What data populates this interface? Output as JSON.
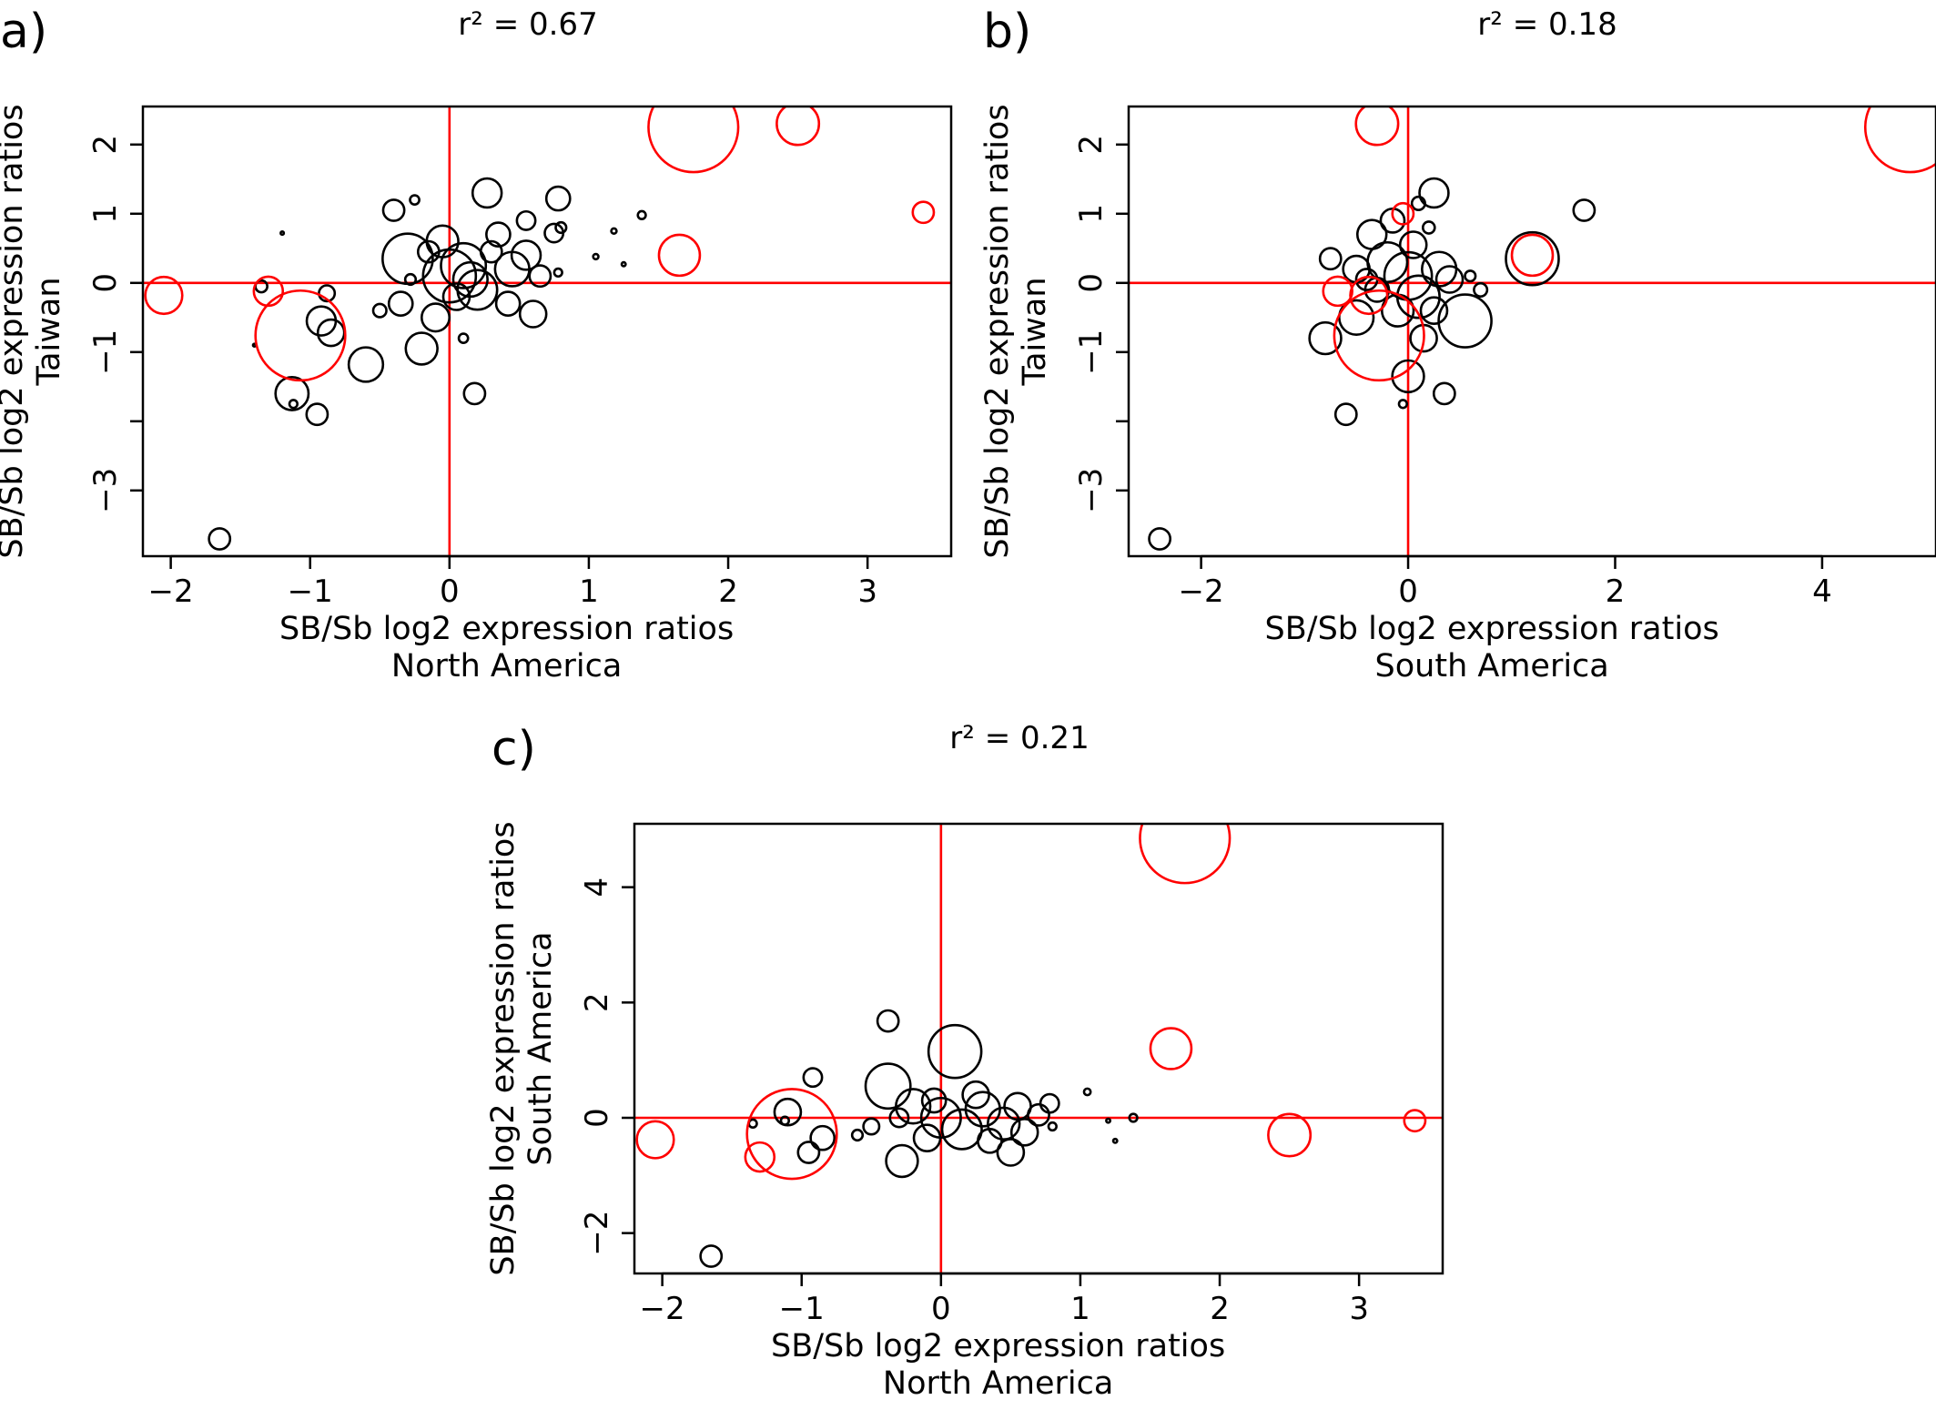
{
  "figure": {
    "colors": {
      "normal": "#000000",
      "highlight": "#ff0000",
      "reference_line": "#ff0000"
    }
  },
  "chart_data": [
    {
      "id": "a",
      "type": "scatter",
      "panel_label": "a)",
      "annotation": "r² = 0.67",
      "xlabel": [
        "SB/Sb log2 expression ratios",
        "North America"
      ],
      "ylabel": [
        "SB/Sb log2 expression ratios",
        "Taiwan"
      ],
      "xlim": [
        -2.2,
        3.6
      ],
      "ylim": [
        -3.95,
        2.55
      ],
      "xticks": [
        -2,
        -1,
        0,
        1,
        2,
        3
      ],
      "xtick_labels": [
        "−2",
        "−1",
        "0",
        "1",
        "2",
        "3"
      ],
      "yticks": [
        2,
        1,
        0,
        -1,
        -2,
        -3
      ],
      "ytick_labels": [
        "2",
        "1",
        "0",
        "−1",
        "",
        "−3"
      ],
      "reference_lines": {
        "x": 0,
        "y": 0
      },
      "marker": "open circle, size = expression level",
      "highlighted_points": [
        {
          "x": 1.75,
          "y": 2.25,
          "size": 3.4
        },
        {
          "x": 2.5,
          "y": 2.3,
          "size": 1.6
        },
        {
          "x": 3.4,
          "y": 1.02,
          "size": 0.8
        },
        {
          "x": 1.65,
          "y": 0.4,
          "size": 1.55
        },
        {
          "x": -2.05,
          "y": -0.18,
          "size": 1.4
        },
        {
          "x": -1.3,
          "y": -0.12,
          "size": 1.1
        },
        {
          "x": -1.07,
          "y": -0.76,
          "size": 3.4
        }
      ],
      "points": [
        {
          "x": -1.65,
          "y": -3.7,
          "size": 0.8
        },
        {
          "x": -1.13,
          "y": -1.6,
          "size": 1.25
        },
        {
          "x": -1.12,
          "y": -1.75,
          "size": 0.3
        },
        {
          "x": -0.95,
          "y": -1.9,
          "size": 0.8
        },
        {
          "x": -1.35,
          "y": -0.05,
          "size": 0.45
        },
        {
          "x": -0.92,
          "y": -0.55,
          "size": 1.1
        },
        {
          "x": -0.85,
          "y": -0.72,
          "size": 1.0
        },
        {
          "x": -0.88,
          "y": -0.15,
          "size": 0.6
        },
        {
          "x": -0.6,
          "y": -1.18,
          "size": 1.3
        },
        {
          "x": -1.2,
          "y": 0.72,
          "size": 0.12
        },
        {
          "x": -0.3,
          "y": 0.35,
          "size": 1.9
        },
        {
          "x": -0.4,
          "y": 1.05,
          "size": 0.8
        },
        {
          "x": -0.25,
          "y": 1.2,
          "size": 0.35
        },
        {
          "x": -0.2,
          "y": -0.95,
          "size": 1.2
        },
        {
          "x": -0.1,
          "y": -0.5,
          "size": 1.05
        },
        {
          "x": 0.0,
          "y": 0.1,
          "size": 2.0
        },
        {
          "x": 0.1,
          "y": 0.25,
          "size": 1.7
        },
        {
          "x": 0.2,
          "y": -0.1,
          "size": 1.5
        },
        {
          "x": 0.27,
          "y": 1.3,
          "size": 1.1
        },
        {
          "x": 0.35,
          "y": 0.7,
          "size": 0.9
        },
        {
          "x": 0.45,
          "y": 0.2,
          "size": 1.3
        },
        {
          "x": 0.55,
          "y": 0.4,
          "size": 1.1
        },
        {
          "x": 0.6,
          "y": -0.45,
          "size": 1.0
        },
        {
          "x": 0.75,
          "y": 0.72,
          "size": 0.7
        },
        {
          "x": 0.78,
          "y": 1.22,
          "size": 0.9
        },
        {
          "x": 0.8,
          "y": 0.8,
          "size": 0.4
        },
        {
          "x": 0.18,
          "y": -1.6,
          "size": 0.8
        },
        {
          "x": 0.1,
          "y": -0.8,
          "size": 0.35
        },
        {
          "x": -0.5,
          "y": -0.4,
          "size": 0.5
        },
        {
          "x": -0.35,
          "y": -0.3,
          "size": 0.9
        },
        {
          "x": 0.3,
          "y": 0.45,
          "size": 0.8
        },
        {
          "x": 0.55,
          "y": 0.9,
          "size": 0.7
        },
        {
          "x": 1.05,
          "y": 0.38,
          "size": 0.2
        },
        {
          "x": 1.18,
          "y": 0.75,
          "size": 0.2
        },
        {
          "x": 1.25,
          "y": 0.27,
          "size": 0.15
        },
        {
          "x": 1.38,
          "y": 0.98,
          "size": 0.3
        },
        {
          "x": -0.15,
          "y": 0.45,
          "size": 0.8
        },
        {
          "x": 0.05,
          "y": -0.2,
          "size": 1.0
        },
        {
          "x": -0.05,
          "y": 0.6,
          "size": 1.2
        },
        {
          "x": 0.15,
          "y": 0.05,
          "size": 1.3
        },
        {
          "x": 0.65,
          "y": 0.1,
          "size": 0.8
        },
        {
          "x": 0.42,
          "y": -0.3,
          "size": 0.9
        },
        {
          "x": 0.78,
          "y": 0.15,
          "size": 0.3
        },
        {
          "x": -0.28,
          "y": 0.05,
          "size": 0.4
        },
        {
          "x": -1.4,
          "y": -0.9,
          "size": 0.05
        }
      ]
    },
    {
      "id": "b",
      "type": "scatter",
      "panel_label": "b)",
      "annotation": "r² = 0.18",
      "xlabel": [
        "SB/Sb log2 expression ratios",
        "South America"
      ],
      "ylabel": [
        "SB/Sb log2 expression ratios",
        "Taiwan"
      ],
      "xlim": [
        -2.7,
        5.1
      ],
      "ylim": [
        -3.95,
        2.55
      ],
      "xticks": [
        -2,
        0,
        2,
        4
      ],
      "xtick_labels": [
        "−2",
        "0",
        "2",
        "4"
      ],
      "yticks": [
        2,
        1,
        0,
        -1,
        -2,
        -3
      ],
      "ytick_labels": [
        "2",
        "1",
        "0",
        "−1",
        "",
        "−3"
      ],
      "reference_lines": {
        "x": 0,
        "y": 0
      },
      "marker": "open circle, size = expression level",
      "highlighted_points": [
        {
          "x": 4.85,
          "y": 2.25,
          "size": 3.4
        },
        {
          "x": -0.3,
          "y": 2.3,
          "size": 1.6
        },
        {
          "x": -0.05,
          "y": 1.0,
          "size": 0.8
        },
        {
          "x": 1.2,
          "y": 0.4,
          "size": 1.55
        },
        {
          "x": -0.38,
          "y": -0.18,
          "size": 1.4
        },
        {
          "x": -0.68,
          "y": -0.12,
          "size": 1.1
        },
        {
          "x": -0.28,
          "y": -0.76,
          "size": 3.4
        }
      ],
      "points": [
        {
          "x": -2.4,
          "y": -3.7,
          "size": 0.8
        },
        {
          "x": -0.6,
          "y": -1.9,
          "size": 0.8
        },
        {
          "x": -0.05,
          "y": -1.75,
          "size": 0.3
        },
        {
          "x": 0.0,
          "y": -1.35,
          "size": 1.2
        },
        {
          "x": 0.35,
          "y": -1.6,
          "size": 0.8
        },
        {
          "x": -0.8,
          "y": -0.8,
          "size": 1.2
        },
        {
          "x": -0.5,
          "y": -0.5,
          "size": 1.3
        },
        {
          "x": 0.55,
          "y": -0.55,
          "size": 2.0
        },
        {
          "x": 1.2,
          "y": 0.35,
          "size": 2.0
        },
        {
          "x": 1.7,
          "y": 1.05,
          "size": 0.8
        },
        {
          "x": 0.25,
          "y": 1.3,
          "size": 1.1
        },
        {
          "x": 0.1,
          "y": 1.15,
          "size": 0.5
        },
        {
          "x": 0.2,
          "y": 0.8,
          "size": 0.45
        },
        {
          "x": -0.35,
          "y": 0.7,
          "size": 1.1
        },
        {
          "x": -0.2,
          "y": 0.3,
          "size": 1.5
        },
        {
          "x": 0.0,
          "y": 0.1,
          "size": 1.8
        },
        {
          "x": 0.1,
          "y": -0.2,
          "size": 1.6
        },
        {
          "x": 0.3,
          "y": 0.2,
          "size": 1.3
        },
        {
          "x": -0.1,
          "y": -0.4,
          "size": 1.2
        },
        {
          "x": 0.4,
          "y": 0.05,
          "size": 1.0
        },
        {
          "x": -0.5,
          "y": 0.2,
          "size": 1.0
        },
        {
          "x": -0.75,
          "y": 0.35,
          "size": 0.8
        },
        {
          "x": 0.15,
          "y": -0.8,
          "size": 1.0
        },
        {
          "x": -0.15,
          "y": 0.9,
          "size": 0.9
        },
        {
          "x": 0.05,
          "y": 0.55,
          "size": 1.0
        },
        {
          "x": 0.25,
          "y": -0.4,
          "size": 1.0
        },
        {
          "x": -0.3,
          "y": -0.1,
          "size": 0.9
        },
        {
          "x": 0.7,
          "y": -0.1,
          "size": 0.5
        },
        {
          "x": 0.6,
          "y": 0.1,
          "size": 0.4
        },
        {
          "x": -0.4,
          "y": 0.05,
          "size": 0.8
        }
      ]
    },
    {
      "id": "c",
      "type": "scatter",
      "panel_label": "c)",
      "annotation": "r² = 0.21",
      "xlabel": [
        "SB/Sb log2 expression ratios",
        "North America"
      ],
      "ylabel": [
        "SB/Sb log2 expression ratios",
        "South America"
      ],
      "xlim": [
        -2.2,
        3.6
      ],
      "ylim": [
        -2.7,
        5.1
      ],
      "xticks": [
        -2,
        -1,
        0,
        1,
        2,
        3
      ],
      "xtick_labels": [
        "−2",
        "−1",
        "0",
        "1",
        "2",
        "3"
      ],
      "yticks": [
        4,
        2,
        0,
        -2
      ],
      "ytick_labels": [
        "4",
        "2",
        "0",
        "−2"
      ],
      "reference_lines": {
        "x": 0,
        "y": 0
      },
      "marker": "open circle, size = expression level",
      "highlighted_points": [
        {
          "x": 1.75,
          "y": 4.85,
          "size": 3.4
        },
        {
          "x": 1.65,
          "y": 1.2,
          "size": 1.55
        },
        {
          "x": 2.5,
          "y": -0.3,
          "size": 1.6
        },
        {
          "x": 3.4,
          "y": -0.05,
          "size": 0.8
        },
        {
          "x": -2.05,
          "y": -0.38,
          "size": 1.4
        },
        {
          "x": -1.3,
          "y": -0.68,
          "size": 1.1
        },
        {
          "x": -1.07,
          "y": -0.28,
          "size": 3.4
        }
      ],
      "points": [
        {
          "x": -1.65,
          "y": -2.4,
          "size": 0.8
        },
        {
          "x": -0.95,
          "y": -0.6,
          "size": 0.8
        },
        {
          "x": -1.12,
          "y": -0.05,
          "size": 0.3
        },
        {
          "x": -1.35,
          "y": -0.1,
          "size": 0.3
        },
        {
          "x": -0.92,
          "y": 0.7,
          "size": 0.7
        },
        {
          "x": -1.1,
          "y": 0.1,
          "size": 1.0
        },
        {
          "x": -0.85,
          "y": -0.35,
          "size": 0.9
        },
        {
          "x": -0.38,
          "y": 1.68,
          "size": 0.8
        },
        {
          "x": 0.1,
          "y": 1.15,
          "size": 2.0
        },
        {
          "x": -0.38,
          "y": 0.55,
          "size": 1.7
        },
        {
          "x": -0.28,
          "y": -0.75,
          "size": 1.2
        },
        {
          "x": -0.2,
          "y": 0.2,
          "size": 1.3
        },
        {
          "x": 0.0,
          "y": 0.0,
          "size": 1.5
        },
        {
          "x": 0.15,
          "y": -0.2,
          "size": 1.5
        },
        {
          "x": 0.3,
          "y": 0.15,
          "size": 1.3
        },
        {
          "x": 0.45,
          "y": -0.1,
          "size": 1.2
        },
        {
          "x": 0.55,
          "y": 0.2,
          "size": 1.0
        },
        {
          "x": 0.6,
          "y": -0.25,
          "size": 1.0
        },
        {
          "x": 0.5,
          "y": -0.6,
          "size": 1.0
        },
        {
          "x": 0.7,
          "y": 0.05,
          "size": 0.8
        },
        {
          "x": 0.78,
          "y": 0.25,
          "size": 0.7
        },
        {
          "x": -0.1,
          "y": -0.35,
          "size": 1.0
        },
        {
          "x": 0.25,
          "y": 0.4,
          "size": 1.0
        },
        {
          "x": -0.5,
          "y": -0.15,
          "size": 0.6
        },
        {
          "x": -0.6,
          "y": -0.3,
          "size": 0.4
        },
        {
          "x": 0.8,
          "y": -0.15,
          "size": 0.3
        },
        {
          "x": 1.05,
          "y": 0.45,
          "size": 0.25
        },
        {
          "x": 1.2,
          "y": -0.05,
          "size": 0.15
        },
        {
          "x": 1.25,
          "y": -0.4,
          "size": 0.15
        },
        {
          "x": 1.38,
          "y": 0.0,
          "size": 0.3
        },
        {
          "x": -0.05,
          "y": 0.3,
          "size": 0.9
        },
        {
          "x": 0.35,
          "y": -0.4,
          "size": 0.9
        },
        {
          "x": -0.3,
          "y": 0.0,
          "size": 0.7
        }
      ]
    }
  ]
}
